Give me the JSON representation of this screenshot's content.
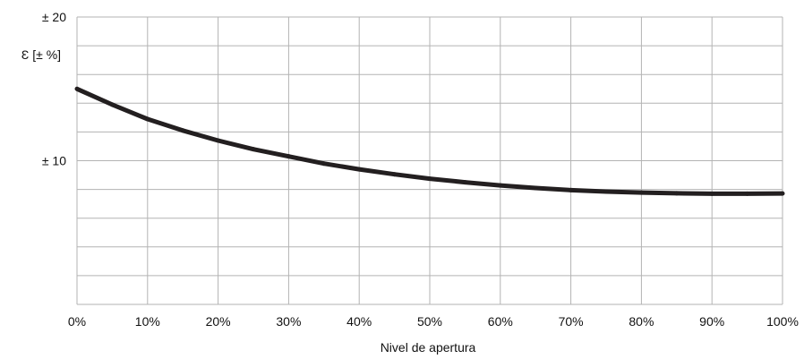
{
  "chart_data": {
    "type": "line",
    "title": "",
    "xlabel": "Nivel de apertura",
    "ylabel": "Ɛ [± %]",
    "x": [
      0,
      5,
      10,
      15,
      20,
      25,
      30,
      35,
      40,
      45,
      50,
      55,
      60,
      65,
      70,
      75,
      80,
      85,
      90,
      95,
      100
    ],
    "series": [
      {
        "values": [
          15,
          13.9,
          12.9,
          12.1,
          11.4,
          10.8,
          10.3,
          9.8,
          9.4,
          9.05,
          8.75,
          8.5,
          8.28,
          8.1,
          7.95,
          7.85,
          7.78,
          7.73,
          7.7,
          7.7,
          7.72
        ],
        "color": "#231f20"
      }
    ],
    "xlim": [
      0,
      100
    ],
    "ylim": [
      0,
      20
    ],
    "x_ticks": [
      0,
      10,
      20,
      30,
      40,
      50,
      60,
      70,
      80,
      90,
      100
    ],
    "x_tick_labels": [
      "0%",
      "10%",
      "20%",
      "30%",
      "40%",
      "50%",
      "60%",
      "70%",
      "80%",
      "90%",
      "100%"
    ],
    "y_ticks": [
      10,
      20
    ],
    "y_tick_labels": [
      "± 10",
      "± 20"
    ],
    "y_gridlines": [
      0,
      2,
      4,
      6,
      8,
      10,
      12,
      14,
      16,
      18,
      20
    ],
    "grid": true,
    "grid_color": "#b3b3b3"
  }
}
